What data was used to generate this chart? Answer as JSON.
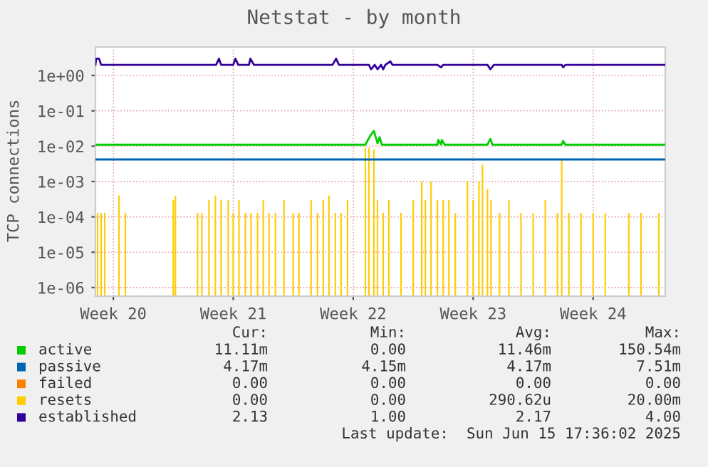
{
  "chart_data": {
    "type": "line",
    "title": "Netstat - by month",
    "ylabel": "TCP connections",
    "log": true,
    "grid": true,
    "legend": "bottom",
    "xlim": [
      "2025-05-10T23:00",
      "2025-06-13T05:00"
    ],
    "xticks": [
      {
        "value": "2025-05-12",
        "label": "Week 20"
      },
      {
        "value": "2025-05-19",
        "label": "Week 21"
      },
      {
        "value": "2025-05-26",
        "label": "Week 22"
      },
      {
        "value": "2025-06-02",
        "label": "Week 23"
      },
      {
        "value": "2025-06-09",
        "label": "Week 24"
      }
    ],
    "ylim": [
      5.7e-07,
      6.4
    ],
    "yticks": [
      {
        "value": 1e-06,
        "label": "1e-06"
      },
      {
        "value": 1e-05,
        "label": "1e-05"
      },
      {
        "value": 0.0001,
        "label": "1e-04"
      },
      {
        "value": 0.001,
        "label": "1e-03"
      },
      {
        "value": 0.01,
        "label": "1e-02"
      },
      {
        "value": 0.1,
        "label": "1e-01"
      },
      {
        "value": 1,
        "label": "1e+00"
      }
    ],
    "series": [
      {
        "name": "active",
        "color": "#00cc00",
        "x": [
          "2025-05-10T23:00",
          "2025-05-26T17:00",
          "2025-05-27T00:00",
          "2025-05-27T05:00",
          "2025-05-27T10:00",
          "2025-05-27T13:00",
          "2025-05-27T16:00",
          "2025-05-30T22:00",
          "2025-05-30T23:00",
          "2025-05-31T03:00",
          "2025-05-31T04:00",
          "2025-05-31T08:00",
          "2025-06-02T20:00",
          "2025-06-03T00:00",
          "2025-06-03T03:00",
          "2025-06-07T04:00",
          "2025-06-07T06:00",
          "2025-06-07T09:00",
          "2025-06-13T05:00"
        ],
        "values": [
          0.011,
          0.011,
          0.02,
          0.027,
          0.012,
          0.018,
          0.011,
          0.011,
          0.015,
          0.011,
          0.015,
          0.011,
          0.011,
          0.016,
          0.011,
          0.011,
          0.014,
          0.011,
          0.011
        ]
      },
      {
        "name": "passive",
        "color": "#0066b3",
        "x": [
          "2025-05-10T23:00",
          "2025-06-13T05:00"
        ],
        "values": [
          0.0042,
          0.0042
        ]
      },
      {
        "name": "failed",
        "color": "#ff8000"
      },
      {
        "name": "resets",
        "color": "#ffcc00",
        "type": "bar",
        "x": [
          "2025-05-11T02:00",
          "2025-05-11T07:00",
          "2025-05-11T12:00",
          "2025-05-12T08:00",
          "2025-05-12T17:00",
          "2025-05-15T12:00",
          "2025-05-15T15:00",
          "2025-05-16T22:00",
          "2025-05-17T04:00",
          "2025-05-17T14:00",
          "2025-05-17T23:00",
          "2025-05-18T07:00",
          "2025-05-18T17:00",
          "2025-05-19T00:00",
          "2025-05-19T08:00",
          "2025-05-19T17:00",
          "2025-05-20T01:00",
          "2025-05-20T10:00",
          "2025-05-20T18:00",
          "2025-05-21T02:00",
          "2025-05-21T11:00",
          "2025-05-21T23:00",
          "2025-05-22T12:00",
          "2025-05-22T20:00",
          "2025-05-23T13:00",
          "2025-05-23T22:00",
          "2025-05-24T06:00",
          "2025-05-24T14:00",
          "2025-05-24T23:00",
          "2025-05-25T07:00",
          "2025-05-25T16:00",
          "2025-05-26T17:00",
          "2025-05-26T22:00",
          "2025-05-27T05:00",
          "2025-05-27T10:00",
          "2025-05-27T18:00",
          "2025-05-28T02:00",
          "2025-05-28T19:00",
          "2025-05-29T12:00",
          "2025-05-30T00:00",
          "2025-05-30T05:00",
          "2025-05-30T13:00",
          "2025-05-30T22:00",
          "2025-05-31T06:00",
          "2025-05-31T14:00",
          "2025-05-31T23:00",
          "2025-06-01T16:00",
          "2025-06-02T00:00",
          "2025-06-02T08:00",
          "2025-06-02T13:00",
          "2025-06-02T20:00",
          "2025-06-03T01:00",
          "2025-06-03T13:00",
          "2025-06-04T02:00",
          "2025-06-04T19:00",
          "2025-06-05T12:00",
          "2025-06-06T05:00",
          "2025-06-06T22:00",
          "2025-06-07T04:00",
          "2025-06-07T14:00",
          "2025-06-08T07:00",
          "2025-06-09T00:00",
          "2025-06-09T17:00",
          "2025-06-11T02:00",
          "2025-06-11T19:00",
          "2025-06-12T20:00"
        ],
        "values": [
          0.00013,
          0.00013,
          0.00013,
          0.0004,
          0.00013,
          0.0003,
          0.0004,
          0.00013,
          0.00013,
          0.0003,
          0.0004,
          0.0003,
          0.0003,
          0.00013,
          0.0003,
          0.00013,
          0.00013,
          0.00013,
          0.0003,
          0.00013,
          0.00013,
          0.0003,
          0.00013,
          0.00013,
          0.0003,
          0.00013,
          0.0003,
          0.0004,
          0.00013,
          0.00013,
          0.0003,
          0.009,
          0.009,
          0.008,
          0.0003,
          0.00013,
          0.0003,
          0.00013,
          0.0003,
          0.001,
          0.0003,
          0.001,
          0.0003,
          0.0003,
          0.0003,
          0.00013,
          0.001,
          0.0003,
          0.001,
          0.003,
          0.0006,
          0.0003,
          0.00013,
          0.0003,
          0.00013,
          0.00013,
          0.0003,
          0.00013,
          0.004,
          0.00013,
          0.00013,
          0.00013,
          0.00013,
          0.00013,
          0.00013,
          0.00013
        ]
      },
      {
        "name": "established",
        "color": "#330099",
        "x": [
          "2025-05-10T23:00",
          "2025-05-11T00:00",
          "2025-05-11T04:00",
          "2025-05-11T07:00",
          "2025-05-18T00:00",
          "2025-05-18T04:00",
          "2025-05-18T07:00",
          "2025-05-19T00:00",
          "2025-05-19T03:00",
          "2025-05-19T07:00",
          "2025-05-19T22:00",
          "2025-05-20T00:00",
          "2025-05-20T05:00",
          "2025-05-24T19:00",
          "2025-05-25T00:00",
          "2025-05-25T04:00",
          "2025-05-26T22:00",
          "2025-05-27T01:00",
          "2025-05-27T06:00",
          "2025-05-27T10:00",
          "2025-05-27T15:00",
          "2025-05-27T18:00",
          "2025-05-27T21:00",
          "2025-05-28T04:00",
          "2025-05-28T07:00",
          "2025-05-30T22:00",
          "2025-05-31T03:00",
          "2025-05-31T06:00",
          "2025-06-02T20:00",
          "2025-06-03T00:00",
          "2025-06-03T05:00",
          "2025-06-07T04:00",
          "2025-06-07T06:00",
          "2025-06-07T09:00",
          "2025-06-13T05:00"
        ],
        "values": [
          2,
          3,
          3,
          2,
          2,
          3,
          2,
          2,
          3,
          2,
          2,
          3,
          2,
          2,
          3,
          2,
          2,
          1.5,
          2,
          1.5,
          2,
          1.5,
          2,
          2.5,
          2,
          2,
          1.7,
          2,
          2,
          1.5,
          2,
          2,
          1.7,
          2,
          2
        ]
      }
    ],
    "annotations": [
      "Cur:",
      "Min:",
      "Avg:",
      "Max:",
      "11.11m",
      "0.00",
      "11.46m",
      "150.54m",
      "4.17m",
      "4.15m",
      "4.17m",
      "7.51m",
      "0.00",
      "0.00",
      "0.00",
      "0.00",
      "0.00",
      "0.00",
      "290.62u",
      "20.00m",
      "2.13",
      "1.00",
      "2.17",
      "4.00",
      "Last update:  Sun Jun 15 17:36:02 2025"
    ]
  }
}
